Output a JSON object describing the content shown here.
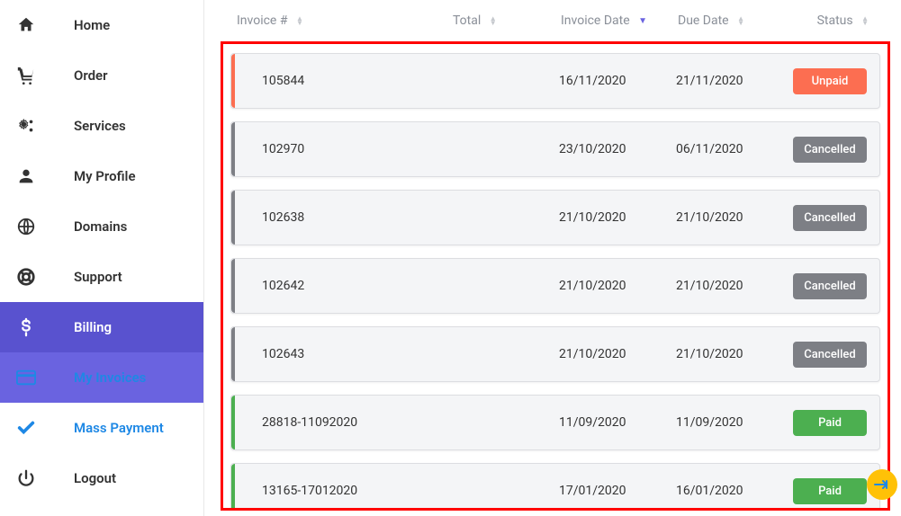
{
  "sidebar": {
    "items": [
      {
        "label": "Home",
        "icon": "home",
        "state": "normal"
      },
      {
        "label": "Order",
        "icon": "cart",
        "state": "normal"
      },
      {
        "label": "Services",
        "icon": "cogs",
        "state": "normal"
      },
      {
        "label": "My Profile",
        "icon": "user",
        "state": "normal"
      },
      {
        "label": "Domains",
        "icon": "globe",
        "state": "normal"
      },
      {
        "label": "Support",
        "icon": "lifering",
        "state": "normal"
      },
      {
        "label": "Billing",
        "icon": "dollar",
        "state": "active"
      },
      {
        "label": "My Invoices",
        "icon": "card",
        "state": "sub-active"
      },
      {
        "label": "Mass Payment",
        "icon": "check",
        "state": "sub"
      },
      {
        "label": "Logout",
        "icon": "power",
        "state": "normal"
      }
    ]
  },
  "table": {
    "headers": {
      "invoice": "Invoice #",
      "total": "Total",
      "invoice_date": "Invoice Date",
      "due_date": "Due Date",
      "status": "Status"
    },
    "sorted_column": "invoice_date",
    "sorted_dir": "desc",
    "status_colors": {
      "Unpaid": "#fc6e51",
      "Cancelled": "#7d7f85",
      "Paid": "#4caf50"
    },
    "accent_colors": {
      "Unpaid": "#fc6e51",
      "Cancelled": "#7d7f85",
      "Paid": "#4caf50"
    },
    "rows": [
      {
        "invoice": "105844",
        "total": "",
        "invoice_date": "16/11/2020",
        "due_date": "21/11/2020",
        "status": "Unpaid"
      },
      {
        "invoice": "102970",
        "total": "",
        "invoice_date": "23/10/2020",
        "due_date": "06/11/2020",
        "status": "Cancelled"
      },
      {
        "invoice": "102638",
        "total": "",
        "invoice_date": "21/10/2020",
        "due_date": "21/10/2020",
        "status": "Cancelled"
      },
      {
        "invoice": "102642",
        "total": "",
        "invoice_date": "21/10/2020",
        "due_date": "21/10/2020",
        "status": "Cancelled"
      },
      {
        "invoice": "102643",
        "total": "",
        "invoice_date": "21/10/2020",
        "due_date": "21/10/2020",
        "status": "Cancelled"
      },
      {
        "invoice": "28818-11092020",
        "total": "",
        "invoice_date": "11/09/2020",
        "due_date": "11/09/2020",
        "status": "Paid"
      },
      {
        "invoice": "13165-17012020",
        "total": "",
        "invoice_date": "17/01/2020",
        "due_date": "16/01/2020",
        "status": "Paid"
      }
    ]
  },
  "colors": {
    "sidebar_active_bg": "#5952cf",
    "sidebar_sub_active_bg": "#6a63e0",
    "link_blue": "#1e88e5",
    "row_bg": "#f4f5f7",
    "row_border": "#dcdde1",
    "header_text": "#8a8f98",
    "highlight_border": "#ff0000",
    "float_btn_bg": "#ffc107"
  }
}
